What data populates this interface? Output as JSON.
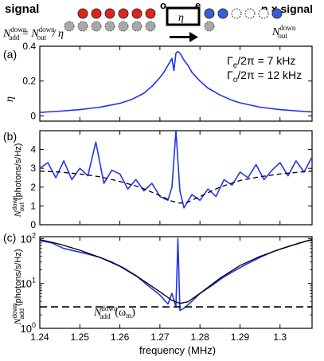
{
  "header": {
    "signal_label": "signal",
    "scaled_signal_label": "η × signal",
    "port_o": "o",
    "port_e": "e",
    "box_label": "η",
    "left_formula": {
      "lhs_sym": "N",
      "lhs_sup": "down",
      "lhs_sub": "add",
      "eq": " = ",
      "rhs_sym": "N",
      "rhs_sup": "down",
      "rhs_sub": "out",
      "div": " / η"
    },
    "right_formula": {
      "sym": "N",
      "sup": "down",
      "sub": "out"
    },
    "dot_colors": {
      "red": "#e0241c",
      "blue": "#3a5bd6",
      "gray": "#a8a8a8",
      "white": "#ffffff"
    }
  },
  "panels": {
    "a": {
      "label": "(a)"
    },
    "b": {
      "label": "(b)"
    },
    "c": {
      "label": "(c)"
    }
  },
  "annotations": {
    "gamma_e": {
      "sym": "Γ",
      "sub": "e",
      "rest": "/2π = 7 kHz"
    },
    "gamma_o": {
      "sym": "Γ",
      "sub": "o",
      "rest": "/2π = 12 kHz"
    },
    "nadd_label": {
      "sym": "N",
      "sup": "down",
      "sub": "add",
      "arg": "(ω",
      "arg_sub": "m",
      "close": ")"
    }
  },
  "chart_data": [
    {
      "type": "line",
      "panel": "(a)",
      "xlabel": "",
      "ylabel": "η",
      "xlim": [
        1.24,
        1.308
      ],
      "ylim": [
        -0.03,
        0.4
      ],
      "yticks": [
        0,
        0.2,
        0.4
      ],
      "ytick_labels": [
        "0",
        "0.2",
        "0.4"
      ],
      "series": [
        {
          "color": "#2233ee",
          "x": [
            1.24,
            1.245,
            1.25,
            1.255,
            1.26,
            1.263,
            1.266,
            1.268,
            1.27,
            1.271,
            1.272,
            1.2725,
            1.273,
            1.2735,
            1.274,
            1.2745,
            1.275,
            1.2755,
            1.276,
            1.277,
            1.278,
            1.28,
            1.282,
            1.285,
            1.288,
            1.29,
            1.295,
            1.3,
            1.305,
            1.308
          ],
          "y": [
            0.02,
            0.027,
            0.036,
            0.05,
            0.072,
            0.095,
            0.13,
            0.17,
            0.22,
            0.25,
            0.29,
            0.31,
            0.33,
            0.26,
            0.36,
            0.37,
            0.36,
            0.34,
            0.32,
            0.29,
            0.25,
            0.2,
            0.16,
            0.12,
            0.09,
            0.075,
            0.05,
            0.036,
            0.027,
            0.023
          ]
        }
      ]
    },
    {
      "type": "line",
      "panel": "(b)",
      "xlabel": "",
      "ylabel": "N out down (photons/s/Hz)",
      "xlim": [
        1.24,
        1.308
      ],
      "ylim": [
        0,
        5
      ],
      "yticks": [
        0,
        1,
        2,
        3,
        4
      ],
      "ytick_labels": [
        "0",
        "1",
        "2",
        "3",
        "4"
      ],
      "series": [
        {
          "color": "#2233ee",
          "x": [
            1.24,
            1.242,
            1.244,
            1.246,
            1.248,
            1.25,
            1.252,
            1.254,
            1.256,
            1.258,
            1.26,
            1.262,
            1.264,
            1.266,
            1.268,
            1.27,
            1.272,
            1.273,
            1.274,
            1.275,
            1.276,
            1.278,
            1.28,
            1.282,
            1.284,
            1.286,
            1.288,
            1.29,
            1.292,
            1.294,
            1.296,
            1.298,
            1.3,
            1.302,
            1.304,
            1.306,
            1.308
          ],
          "y": [
            3.0,
            3.3,
            2.5,
            3.4,
            2.4,
            3.0,
            2.6,
            4.4,
            2.2,
            2.9,
            2.7,
            1.9,
            2.4,
            1.8,
            2.2,
            1.5,
            1.3,
            2.0,
            5.0,
            1.8,
            0.9,
            1.6,
            1.3,
            1.9,
            1.5,
            2.4,
            2.1,
            2.8,
            2.5,
            3.2,
            2.4,
            2.9,
            3.3,
            2.6,
            3.4,
            2.8,
            3.6
          ]
        },
        {
          "color": "#000000",
          "dashed": true,
          "x": [
            1.24,
            1.245,
            1.25,
            1.255,
            1.26,
            1.265,
            1.27,
            1.273,
            1.275,
            1.277,
            1.28,
            1.285,
            1.29,
            1.295,
            1.3,
            1.305,
            1.308
          ],
          "y": [
            2.85,
            2.8,
            2.7,
            2.55,
            2.3,
            2.0,
            1.55,
            1.25,
            1.15,
            1.2,
            1.5,
            2.0,
            2.35,
            2.55,
            2.7,
            2.8,
            2.85
          ]
        }
      ]
    },
    {
      "type": "line",
      "panel": "(c)",
      "xlabel": "frequency (MHz)",
      "ylabel": "N add down (photons/s/Hz)",
      "xlim": [
        1.24,
        1.308
      ],
      "ylim": [
        1,
        110
      ],
      "yscale": "log",
      "yticks": [
        1,
        10,
        100
      ],
      "ytick_labels": [
        "10⁰",
        "10¹",
        "10²"
      ],
      "xticks": [
        1.24,
        1.25,
        1.26,
        1.27,
        1.28,
        1.29,
        1.3
      ],
      "xtick_labels": [
        "1.24",
        "1.25",
        "1.26",
        "1.27",
        "1.28",
        "1.29",
        "1.3"
      ],
      "series": [
        {
          "color": "#2233ee",
          "x": [
            1.24,
            1.243,
            1.246,
            1.249,
            1.252,
            1.255,
            1.258,
            1.261,
            1.264,
            1.267,
            1.27,
            1.272,
            1.273,
            1.274,
            1.2745,
            1.275,
            1.276,
            1.278,
            1.28,
            1.283,
            1.286,
            1.289,
            1.292,
            1.295,
            1.298,
            1.301,
            1.304,
            1.307,
            1.308
          ],
          "y": [
            90,
            80,
            60,
            52,
            45,
            38,
            30,
            22,
            15,
            9,
            5.5,
            3.5,
            6,
            3,
            100,
            2.5,
            2.8,
            4,
            6,
            9,
            14,
            20,
            28,
            38,
            50,
            62,
            75,
            90,
            95
          ]
        },
        {
          "color": "#000000",
          "dashed": false,
          "x": [
            1.24,
            1.245,
            1.25,
            1.255,
            1.26,
            1.265,
            1.27,
            1.273,
            1.275,
            1.277,
            1.28,
            1.285,
            1.29,
            1.295,
            1.3,
            1.305,
            1.308
          ],
          "y": [
            95,
            75,
            55,
            38,
            24,
            13,
            6.5,
            4.2,
            3.6,
            3.9,
            6.0,
            13,
            25,
            40,
            58,
            80,
            95
          ]
        },
        {
          "color": "#000000",
          "dashed": true,
          "x": [
            1.24,
            1.308
          ],
          "y": [
            3,
            3
          ]
        }
      ]
    }
  ]
}
